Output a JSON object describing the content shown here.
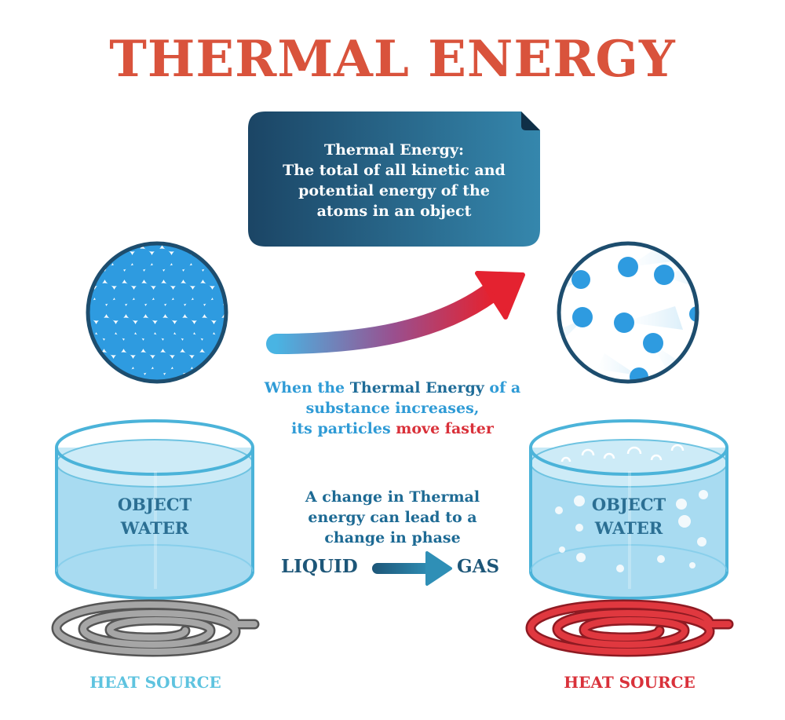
{
  "title": "THERMAL ENERGY",
  "definition": {
    "line1": "Thermal Energy:",
    "line2": "The total of all kinetic and",
    "line3": "potential energy of the",
    "line4": "atoms in an object"
  },
  "caption_motion": {
    "line1_a": "When the ",
    "line1_b": "Thermal Energy",
    "line1_c": " of a",
    "line2": "substance increases,",
    "line3_a": "its particles ",
    "line3_b": "move faster"
  },
  "caption_phase": {
    "line1": "A change in Thermal",
    "line2": "energy can lead to a",
    "line3": "change in phase"
  },
  "phase_from": "LIQUID",
  "phase_to": "GAS",
  "left_container": {
    "line1": "OBJECT",
    "line2": "WATER"
  },
  "right_container": {
    "line1": "OBJECT",
    "line2": "WATER"
  },
  "left_heat_label": "HEAT SOURCE",
  "right_heat_label": "HEAT SOURCE",
  "colors": {
    "title": "#d9533c",
    "navy": "#1d4d6e",
    "teal": "#2a82a8",
    "blue_text": "#2f9bd6",
    "red_text": "#d9313a",
    "particle": "#2e9be0",
    "container_fill": "#a9dcf2",
    "container_stroke": "#4bb3d9",
    "coil_cold": "#8a8a8a",
    "coil_hot": "#d9313a",
    "heat_cold_label": "#5ec3df",
    "heat_hot_label": "#d9313a"
  }
}
